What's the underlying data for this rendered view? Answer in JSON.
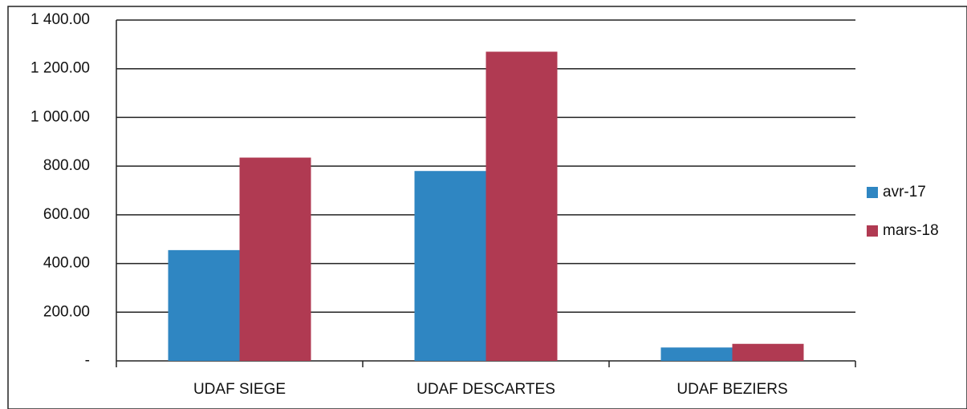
{
  "chart_data": {
    "type": "bar",
    "categories": [
      "UDAF SIEGE",
      "UDAF DESCARTES",
      "UDAF BEZIERS"
    ],
    "series": [
      {
        "name": "avr-17",
        "color": "#2f86c2",
        "values": [
          455,
          780,
          55
        ]
      },
      {
        "name": "mars-18",
        "color": "#b03a52",
        "values": [
          835,
          1270,
          70
        ]
      }
    ],
    "ylim": [
      0,
      1400
    ],
    "yticks": [
      {
        "value": 0,
        "label": "-"
      },
      {
        "value": 200,
        "label": "200.00"
      },
      {
        "value": 400,
        "label": "400.00"
      },
      {
        "value": 600,
        "label": "600.00"
      },
      {
        "value": 800,
        "label": "800.00"
      },
      {
        "value": 1000,
        "label": "1 000.00"
      },
      {
        "value": 1200,
        "label": "1 200.00"
      },
      {
        "value": 1400,
        "label": "1 400.00"
      }
    ],
    "grid": true,
    "legend": "right"
  }
}
